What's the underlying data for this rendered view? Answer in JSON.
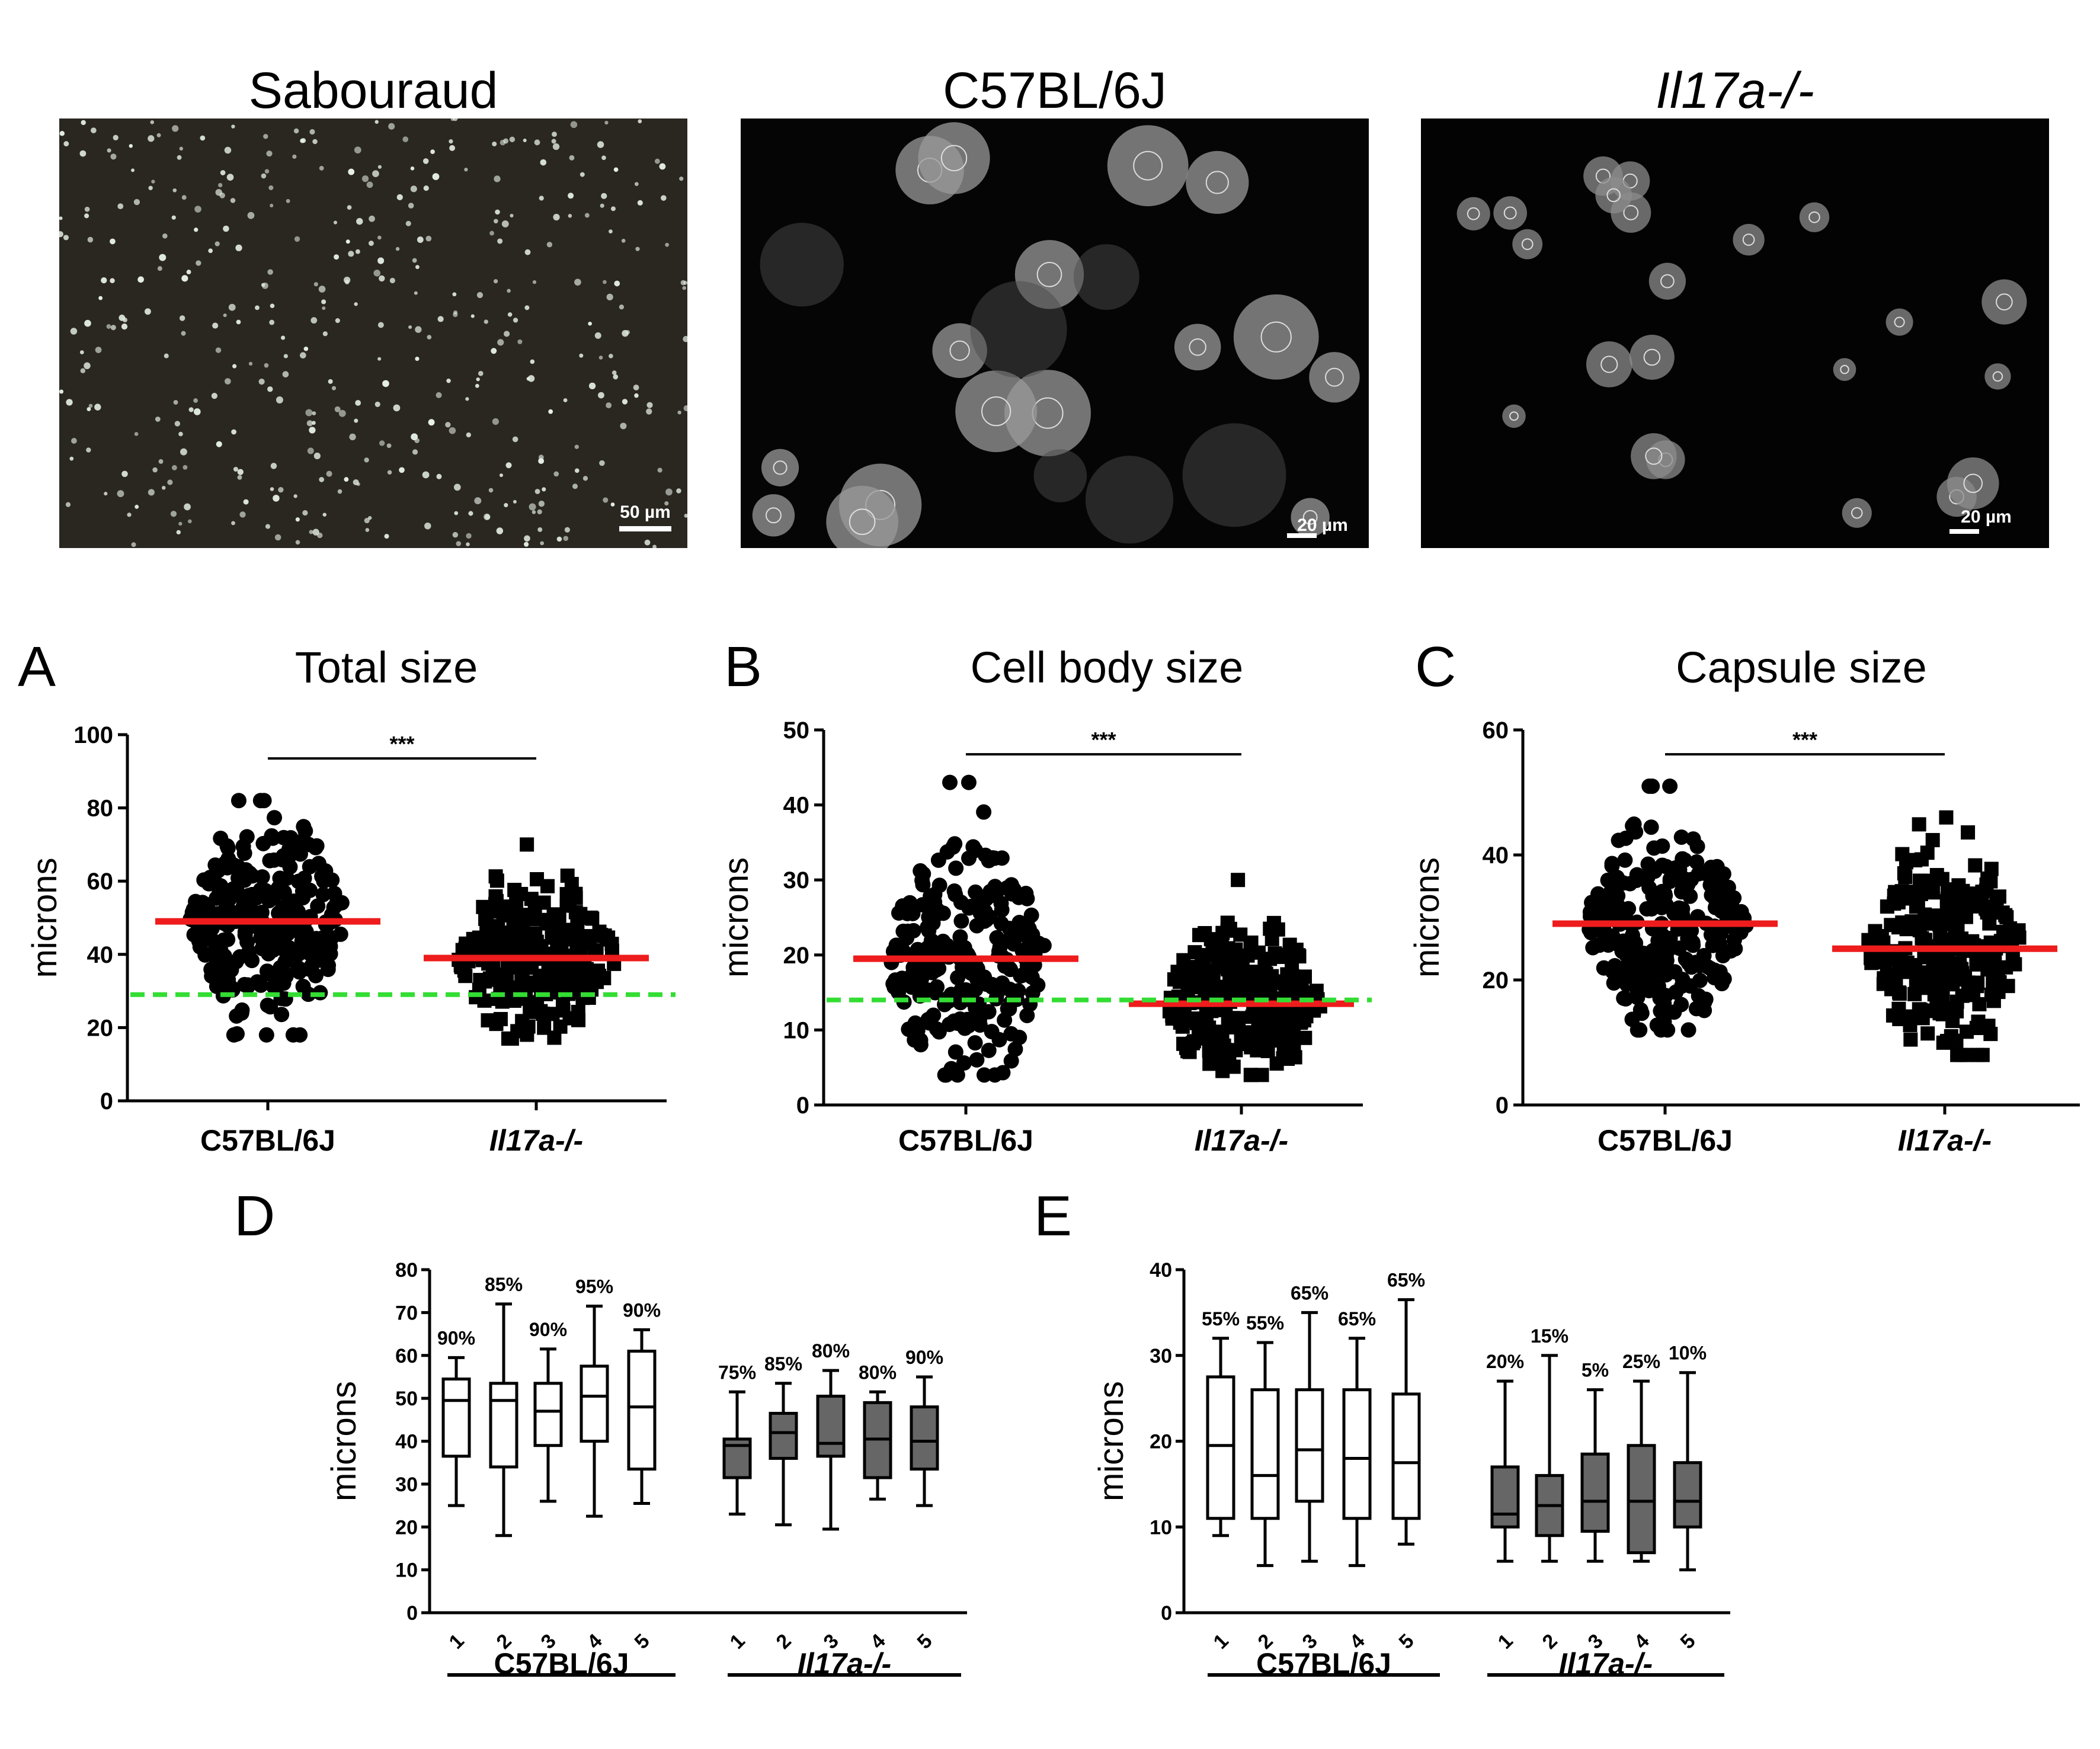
{
  "figure": {
    "micrographs": [
      {
        "title": "Sabouraud",
        "italic": false,
        "scale_bar": "50 µm",
        "background": "#2a2620",
        "cell_color": "#e6f0e6"
      },
      {
        "title": "C57BL/6J",
        "italic": false,
        "scale_bar": "20 µm",
        "background": "#050505",
        "cell_color": "#9a9a9a"
      },
      {
        "title": "Il17a-/-",
        "italic": true,
        "scale_bar": "20 µm",
        "background": "#030303",
        "cell_color": "#8c8c8c"
      }
    ],
    "panels": {
      "A": {
        "letter": "A",
        "title": "Total size"
      },
      "B": {
        "letter": "B",
        "title": "Cell body size"
      },
      "C": {
        "letter": "C",
        "title": "Capsule size"
      },
      "D": {
        "letter": "D"
      },
      "E": {
        "letter": "E"
      }
    }
  },
  "colors": {
    "median_line": "#ee1c1c",
    "reference_line": "#33dd33",
    "points": "#000000",
    "box_wt": "#ffffff",
    "box_ko": "#666666"
  },
  "chart_data": [
    {
      "id": "A",
      "type": "scatter",
      "title": "Total size",
      "ylabel": "microns",
      "ylim": [
        0,
        100
      ],
      "yticks": [
        0,
        20,
        40,
        60,
        80,
        100
      ],
      "categories": [
        "C57BL/6J",
        "Il17a-/-"
      ],
      "category_italic": [
        false,
        true
      ],
      "series": [
        {
          "name": "C57BL/6J",
          "marker": "circle",
          "median": 49,
          "min": 18,
          "max": 82
        },
        {
          "name": "Il17a-/-",
          "marker": "square",
          "median": 39,
          "min": 17,
          "max": 70
        }
      ],
      "reference_line": 29,
      "significance": "***"
    },
    {
      "id": "B",
      "type": "scatter",
      "title": "Cell body size",
      "ylabel": "microns",
      "ylim": [
        0,
        50
      ],
      "yticks": [
        0,
        10,
        20,
        30,
        40,
        50
      ],
      "categories": [
        "C57BL/6J",
        "Il17a-/-"
      ],
      "category_italic": [
        false,
        true
      ],
      "series": [
        {
          "name": "C57BL/6J",
          "marker": "circle",
          "median": 19.5,
          "min": 4,
          "max": 43
        },
        {
          "name": "Il17a-/-",
          "marker": "square",
          "median": 13.5,
          "min": 4,
          "max": 30
        }
      ],
      "reference_line": 14,
      "significance": "***"
    },
    {
      "id": "C",
      "type": "scatter",
      "title": "Capsule size",
      "ylabel": "microns",
      "ylim": [
        0,
        60
      ],
      "yticks": [
        0,
        20,
        40,
        60
      ],
      "categories": [
        "C57BL/6J",
        "Il17a-/-"
      ],
      "category_italic": [
        false,
        true
      ],
      "series": [
        {
          "name": "C57BL/6J",
          "marker": "circle",
          "median": 29,
          "min": 12,
          "max": 51
        },
        {
          "name": "Il17a-/-",
          "marker": "square",
          "median": 25,
          "min": 8,
          "max": 46
        }
      ],
      "reference_line": null,
      "significance": "***"
    },
    {
      "id": "D",
      "type": "box",
      "ylabel": "microns",
      "ylim": [
        0,
        80
      ],
      "yticks": [
        0,
        10,
        20,
        30,
        40,
        50,
        60,
        70,
        80
      ],
      "groups": [
        {
          "name": "C57BL/6J",
          "italic": false,
          "fill": "white",
          "boxes": [
            {
              "label": "1",
              "min": 25,
              "q1": 36.5,
              "median": 49.5,
              "q3": 54.5,
              "max": 59.5,
              "annotation": "90%"
            },
            {
              "label": "2",
              "min": 18,
              "q1": 34,
              "median": 49.5,
              "q3": 53.5,
              "max": 72,
              "annotation": "85%"
            },
            {
              "label": "3",
              "min": 26,
              "q1": 39,
              "median": 47,
              "q3": 53.5,
              "max": 61.5,
              "annotation": "90%"
            },
            {
              "label": "4",
              "min": 22.5,
              "q1": 40,
              "median": 50.5,
              "q3": 57.5,
              "max": 71.5,
              "annotation": "95%"
            },
            {
              "label": "5",
              "min": 25.5,
              "q1": 33.5,
              "median": 48,
              "q3": 61,
              "max": 66,
              "annotation": "90%"
            }
          ]
        },
        {
          "name": "Il17a-/-",
          "italic": true,
          "fill": "gray",
          "boxes": [
            {
              "label": "1",
              "min": 23,
              "q1": 31.5,
              "median": 39,
              "q3": 40.5,
              "max": 51.5,
              "annotation": "75%"
            },
            {
              "label": "2",
              "min": 20.5,
              "q1": 36,
              "median": 42,
              "q3": 46.5,
              "max": 53.5,
              "annotation": "85%"
            },
            {
              "label": "3",
              "min": 19.5,
              "q1": 36.5,
              "median": 39.5,
              "q3": 50.5,
              "max": 56.5,
              "annotation": "80%"
            },
            {
              "label": "4",
              "min": 26.5,
              "q1": 31.5,
              "median": 40.5,
              "q3": 49,
              "max": 51.5,
              "annotation": "80%"
            },
            {
              "label": "5",
              "min": 25,
              "q1": 33.5,
              "median": 40,
              "q3": 48,
              "max": 55,
              "annotation": "90%"
            }
          ]
        }
      ]
    },
    {
      "id": "E",
      "type": "box",
      "ylabel": "microns",
      "ylim": [
        0,
        40
      ],
      "yticks": [
        0,
        10,
        20,
        30,
        40
      ],
      "groups": [
        {
          "name": "C57BL/6J",
          "italic": false,
          "fill": "white",
          "boxes": [
            {
              "label": "1",
              "min": 9,
              "q1": 11,
              "median": 19.5,
              "q3": 27.5,
              "max": 32,
              "annotation": "55%"
            },
            {
              "label": "2",
              "min": 5.5,
              "q1": 11,
              "median": 16,
              "q3": 26,
              "max": 31.5,
              "annotation": "55%"
            },
            {
              "label": "3",
              "min": 6,
              "q1": 13,
              "median": 19,
              "q3": 26,
              "max": 35,
              "annotation": "65%"
            },
            {
              "label": "4",
              "min": 5.5,
              "q1": 11,
              "median": 18,
              "q3": 26,
              "max": 32,
              "annotation": "65%"
            },
            {
              "label": "5",
              "min": 8,
              "q1": 11,
              "median": 17.5,
              "q3": 25.5,
              "max": 36.5,
              "annotation": "65%"
            }
          ]
        },
        {
          "name": "Il17a-/-",
          "italic": true,
          "fill": "gray",
          "boxes": [
            {
              "label": "1",
              "min": 6,
              "q1": 10,
              "median": 11.5,
              "q3": 17,
              "max": 27,
              "annotation": "20%"
            },
            {
              "label": "2",
              "min": 6,
              "q1": 9,
              "median": 12.5,
              "q3": 16,
              "max": 30,
              "annotation": "15%"
            },
            {
              "label": "3",
              "min": 6,
              "q1": 9.5,
              "median": 13,
              "q3": 18.5,
              "max": 26,
              "annotation": "5%"
            },
            {
              "label": "4",
              "min": 6,
              "q1": 7,
              "median": 13,
              "q3": 19.5,
              "max": 27,
              "annotation": "25%"
            },
            {
              "label": "5",
              "min": 5,
              "q1": 10,
              "median": 13,
              "q3": 17.5,
              "max": 28,
              "annotation": "10%"
            }
          ]
        }
      ]
    }
  ]
}
